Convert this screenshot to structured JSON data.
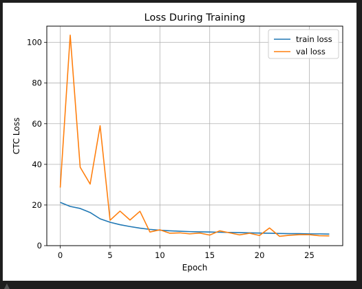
{
  "chart_data": {
    "type": "line",
    "title": "Loss During Training",
    "xlabel": "Epoch",
    "ylabel": "CTC Loss",
    "xlim": [
      -1.35,
      28.35
    ],
    "ylim": [
      0,
      108
    ],
    "xticks": [
      0,
      5,
      10,
      15,
      20,
      25
    ],
    "yticks": [
      0,
      20,
      40,
      60,
      80,
      100
    ],
    "grid": true,
    "legend_position": "top-right",
    "x": [
      0,
      1,
      2,
      3,
      4,
      5,
      6,
      7,
      8,
      9,
      10,
      11,
      12,
      13,
      14,
      15,
      16,
      17,
      18,
      19,
      20,
      21,
      22,
      23,
      24,
      25,
      26,
      27
    ],
    "series": [
      {
        "name": "train loss",
        "color": "#1f77b4",
        "values": [
          21.3,
          19.3,
          18.3,
          16.3,
          13.2,
          11.5,
          10.3,
          9.4,
          8.6,
          8.0,
          7.6,
          7.3,
          7.1,
          6.9,
          6.8,
          6.7,
          6.6,
          6.5,
          6.4,
          6.3,
          6.2,
          6.1,
          6.0,
          5.9,
          5.9,
          5.8,
          5.8,
          5.7
        ]
      },
      {
        "name": "val loss",
        "color": "#ff7f0e",
        "values": [
          28.6,
          103.6,
          38.6,
          30.3,
          59.0,
          12.5,
          17.0,
          12.6,
          16.9,
          6.7,
          7.8,
          6.1,
          6.3,
          5.8,
          6.2,
          5.2,
          7.3,
          6.3,
          5.3,
          6.1,
          5.0,
          8.7,
          4.6,
          5.1,
          5.4,
          5.4,
          4.9,
          4.8
        ]
      }
    ]
  }
}
